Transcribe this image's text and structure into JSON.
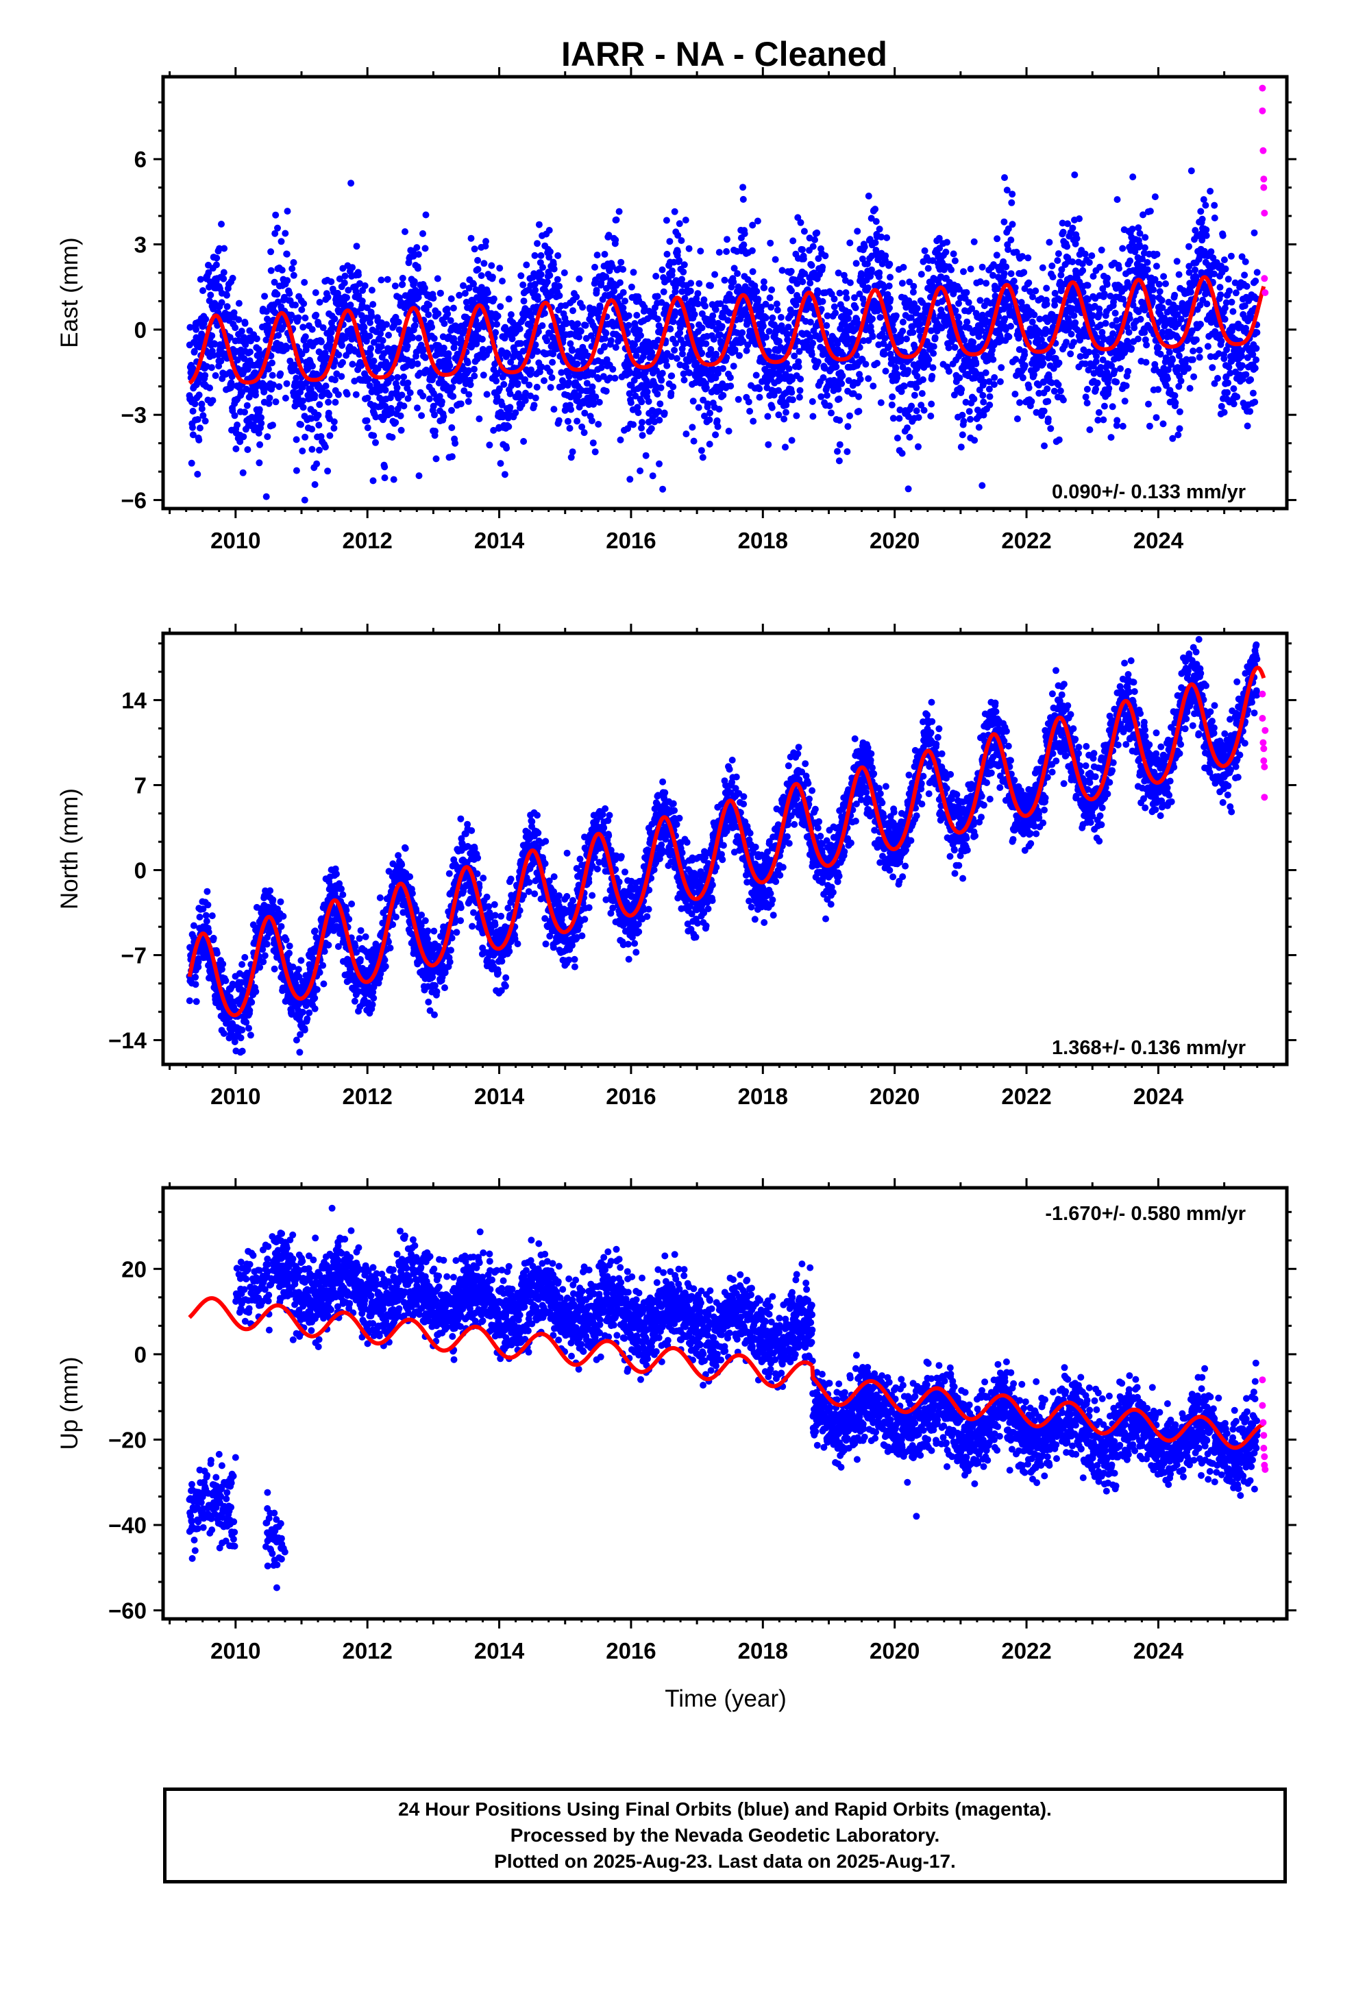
{
  "title": "IARR  - NA - Cleaned",
  "footer": {
    "line1": "24 Hour Positions Using Final Orbits (blue) and Rapid Orbits (magenta).",
    "line2": "Processed by the Nevada Geodetic Laboratory.",
    "line3": "Plotted on 2025-Aug-23. Last data on 2025-Aug-17."
  },
  "colors": {
    "final_orbits": "#0000ff",
    "rapid_orbits": "#ff00ff",
    "model_fit": "#ff0000",
    "frame": "#000000"
  },
  "chart_data": [
    {
      "type": "scatter",
      "ylabel": "East (mm)",
      "xlabel": "",
      "xlim": [
        2008.9,
        2025.95
      ],
      "ylim": [
        -6.3,
        8.9
      ],
      "xticks": [
        2010,
        2012,
        2014,
        2016,
        2018,
        2020,
        2022,
        2024
      ],
      "yticks": [
        -6,
        -3,
        0,
        3,
        6
      ],
      "rate": "0.090+/- 0.133 mm/yr",
      "rate_position": "bottom-right",
      "model": {
        "trend_mm_per_yr": 0.09,
        "offset_mm": -0.3,
        "annual_amp_mm": 1.2,
        "annual_peak_phase_yr": 0.7,
        "semiannual_amp_mm": 0.25
      },
      "series": [
        {
          "name": "Final Orbits",
          "color": "#0000ff",
          "x_range": [
            2009.3,
            2025.5
          ],
          "scatter_sd_mm": 1.4,
          "clip": [
            -6,
            6
          ]
        },
        {
          "name": "Rapid Orbits",
          "color": "#ff00ff",
          "x": [
            2025.58,
            2025.58,
            2025.59,
            2025.6,
            2025.6,
            2025.61,
            2025.61,
            2025.62
          ],
          "y": [
            8.5,
            7.7,
            6.3,
            5.3,
            5.0,
            4.1,
            1.8,
            1.3
          ]
        }
      ]
    },
    {
      "type": "scatter",
      "ylabel": "North (mm)",
      "xlabel": "",
      "xlim": [
        2008.9,
        2025.95
      ],
      "ylim": [
        -16.0,
        19.5
      ],
      "xticks": [
        2010,
        2012,
        2014,
        2016,
        2018,
        2020,
        2022,
        2024
      ],
      "yticks": [
        -14,
        -7,
        0,
        7,
        14
      ],
      "rate": "1.368+/- 0.136 mm/yr",
      "rate_position": "bottom-right",
      "model": {
        "trend_mm_per_yr": 1.368,
        "offset_mm": -9.6,
        "start_year": 2009.3,
        "annual_amp_mm": 3.7,
        "annual_peak_phase_yr": 0.5,
        "semiannual_amp_mm": 0.4
      },
      "series": [
        {
          "name": "Final Orbits",
          "color": "#0000ff",
          "x_range": [
            2009.3,
            2025.5
          ],
          "scatter_sd_mm": 1.5,
          "clip": [
            -15,
            19
          ]
        },
        {
          "name": "Rapid Orbits",
          "color": "#ff00ff",
          "x": [
            2025.58,
            2025.58,
            2025.59,
            2025.6,
            2025.6,
            2025.61,
            2025.61,
            2025.62
          ],
          "y": [
            14.5,
            12.5,
            10.5,
            10.0,
            9.0,
            8.5,
            6.0,
            11.5
          ]
        }
      ]
    },
    {
      "type": "scatter",
      "ylabel": "Up (mm)",
      "xlabel": "Time (year)",
      "xlim": [
        2008.9,
        2025.95
      ],
      "ylim": [
        -62,
        39
      ],
      "xticks": [
        2010,
        2012,
        2014,
        2016,
        2018,
        2020,
        2022,
        2024
      ],
      "yticks": [
        -60,
        -40,
        -20,
        0,
        20
      ],
      "rate": "-1.670+/- 0.580 mm/yr",
      "rate_position": "top-right",
      "model": {
        "trend_mm_per_yr": -1.67,
        "annual_amp_mm": 3.2,
        "annual_peak_phase_yr": 0.65,
        "segments": [
          {
            "x_range": [
              2009.3,
              2018.75
            ],
            "offset_mm": 10.5
          },
          {
            "x_range": [
              2018.75,
              2025.6
            ],
            "offset_mm": -8.0
          }
        ]
      },
      "series": [
        {
          "name": "Final Orbits",
          "color": "#0000ff",
          "x_range": [
            2009.3,
            2025.5
          ],
          "scatter_sd_mm": 4.5,
          "data_offset_mm": [
            {
              "x_range": [
                2009.3,
                2010.0
              ],
              "level_mm": -37
            },
            {
              "x_range": [
                2010.0,
                2018.75
              ],
              "level_mm_start": 18,
              "level_mm_end": 5
            },
            {
              "x_range": [
                2018.75,
                2025.5
              ],
              "level_mm_start": -13,
              "level_mm_end": -21
            }
          ]
        },
        {
          "name": "Rapid Orbits",
          "color": "#ff00ff",
          "x": [
            2025.58,
            2025.58,
            2025.59,
            2025.6,
            2025.6,
            2025.61,
            2025.61,
            2025.62
          ],
          "y": [
            -6,
            -12,
            -16,
            -19,
            -22,
            -24,
            -26,
            -27
          ]
        }
      ]
    }
  ]
}
